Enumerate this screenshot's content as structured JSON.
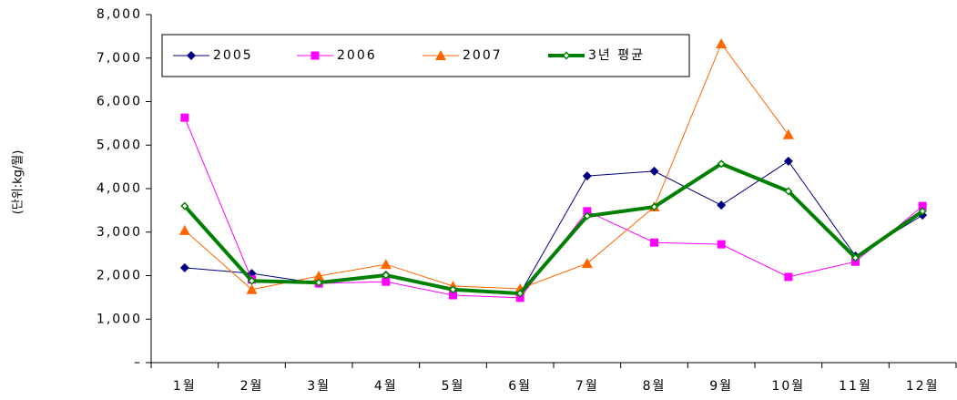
{
  "chart_data": {
    "type": "line",
    "y_label": "(단위:kg/월)",
    "categories": [
      "1월",
      "2월",
      "3월",
      "4월",
      "5월",
      "6월",
      "7월",
      "8월",
      "9월",
      "10월",
      "11월",
      "12월"
    ],
    "series": [
      {
        "name": "2005",
        "color": "#000080",
        "marker": "diamond",
        "linewidth": 1,
        "values": [
          2180,
          2050,
          1820,
          2010,
          1680,
          1590,
          4290,
          4400,
          3620,
          4630,
          2450,
          3390
        ]
      },
      {
        "name": "2006",
        "color": "#ff00ff",
        "marker": "square",
        "linewidth": 1,
        "values": [
          5630,
          1910,
          1820,
          1860,
          1550,
          1490,
          3480,
          2760,
          2720,
          1970,
          2320,
          3600
        ]
      },
      {
        "name": "2007",
        "color": "#ff6600",
        "marker": "triangle",
        "linewidth": 1,
        "values": [
          3040,
          1680,
          1990,
          2260,
          1760,
          1700,
          2280,
          3580,
          7330,
          5240,
          null,
          null
        ]
      },
      {
        "name": "3년 평균",
        "color": "#008000",
        "marker": "small-diamond",
        "linewidth": 4,
        "values": [
          3600,
          1880,
          1840,
          2010,
          1680,
          1590,
          3370,
          3580,
          4570,
          3940,
          2410,
          3480
        ]
      }
    ],
    "ylim": [
      0,
      8000
    ],
    "yticks": [
      {
        "value": 0,
        "label": "–"
      },
      {
        "value": 1000,
        "label": "1,000"
      },
      {
        "value": 2000,
        "label": "2,000"
      },
      {
        "value": 3000,
        "label": "3,000"
      },
      {
        "value": 4000,
        "label": "4,000"
      },
      {
        "value": 5000,
        "label": "5,000"
      },
      {
        "value": 6000,
        "label": "6,000"
      },
      {
        "value": 7000,
        "label": "7,000"
      },
      {
        "value": 8000,
        "label": "8,000"
      }
    ],
    "legend": "top-left"
  }
}
